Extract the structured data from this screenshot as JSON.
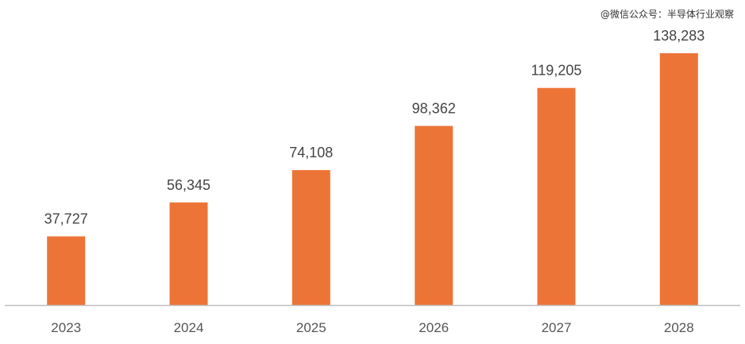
{
  "watermark": "@微信公众号：半导体行业观察",
  "colors": {
    "bar": "#ED7437",
    "axis": "#BFBFBF",
    "text": "#444444"
  },
  "chart_data": {
    "type": "bar",
    "categories": [
      "2023",
      "2024",
      "2025",
      "2026",
      "2027",
      "2028"
    ],
    "values": [
      37727,
      56345,
      74108,
      98362,
      119205,
      138283
    ],
    "value_labels": [
      "37,727",
      "56,345",
      "74,108",
      "98,362",
      "119,205",
      "138,283"
    ],
    "title": "",
    "xlabel": "",
    "ylabel": "",
    "ylim": [
      0,
      138283
    ],
    "grid": false,
    "legend": "none"
  }
}
